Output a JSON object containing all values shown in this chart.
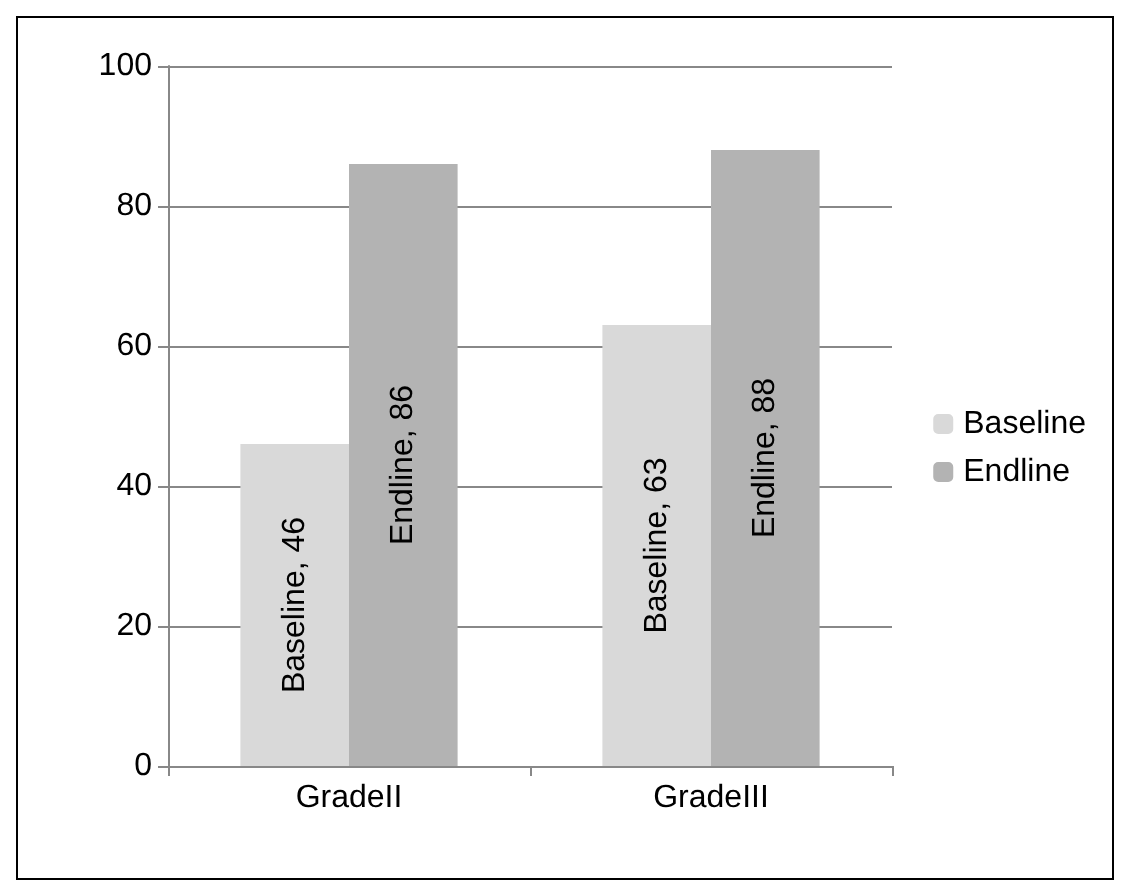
{
  "chart_data": {
    "type": "bar",
    "categories": [
      "GradeII",
      "GradeIII"
    ],
    "series": [
      {
        "name": "Baseline",
        "color": "#d9d9d9",
        "values": [
          46,
          63
        ],
        "value_labels": [
          "Baseline, 46",
          "Baseline, 63"
        ]
      },
      {
        "name": "Endline",
        "color": "#b3b3b3",
        "values": [
          86,
          88
        ],
        "value_labels": [
          "Endline, 86",
          "Endline, 88"
        ]
      }
    ],
    "ylim": [
      0,
      100
    ],
    "yticks": [
      0,
      20,
      40,
      60,
      80,
      100
    ],
    "grid": "y",
    "legend": "right"
  }
}
